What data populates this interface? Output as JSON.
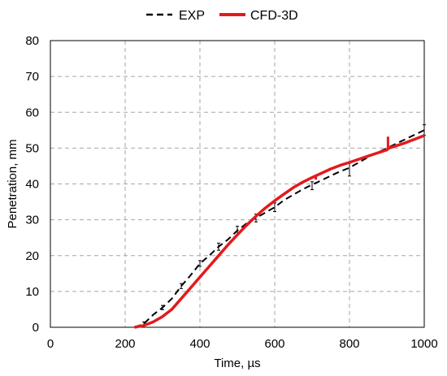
{
  "chart_data": {
    "type": "line",
    "xlabel": "Time, µs",
    "ylabel": "Penetration, mm",
    "xlim": [
      0,
      1000
    ],
    "ylim": [
      0,
      80
    ],
    "xticks": [
      0,
      200,
      400,
      600,
      800,
      1000
    ],
    "yticks": [
      0,
      10,
      20,
      30,
      40,
      50,
      60,
      70,
      80
    ],
    "grid": true,
    "legend_position": "top-center",
    "series": [
      {
        "name": "EXP",
        "color": "#000000",
        "style": "dashed",
        "error_bars": true,
        "x": [
          225,
          250,
          275,
          300,
          325,
          350,
          375,
          400,
          425,
          450,
          475,
          500,
          525,
          550,
          575,
          600,
          625,
          650,
          675,
          700,
          725,
          750,
          775,
          800,
          850,
          900,
          950,
          1000
        ],
        "y": [
          0,
          1,
          3.5,
          5.5,
          8,
          11.5,
          14.5,
          17.8,
          20,
          22.5,
          24.5,
          27,
          29,
          30.5,
          32,
          33.5,
          35.5,
          37,
          38.5,
          39.8,
          41,
          42.3,
          43.5,
          44.5,
          47.5,
          50,
          52.5,
          55
        ],
        "error_x": [
          250,
          300,
          350,
          400,
          450,
          500,
          550,
          600,
          700,
          800,
          1000
        ],
        "error_y": [
          1,
          5.5,
          11.5,
          17.8,
          22.5,
          27,
          30.5,
          33.5,
          39.5,
          44,
          55
        ],
        "error_size": [
          0.5,
          0.6,
          0.7,
          0.8,
          1,
          1.2,
          1.1,
          1.2,
          1.1,
          1.8,
          1.5
        ]
      },
      {
        "name": "CFD-3D",
        "color": "#e31a1c",
        "style": "solid",
        "x": [
          225,
          250,
          275,
          300,
          325,
          350,
          375,
          400,
          425,
          450,
          475,
          500,
          525,
          550,
          575,
          600,
          625,
          650,
          675,
          700,
          725,
          750,
          775,
          800,
          850,
          900,
          905,
          950,
          1000
        ],
        "y": [
          0,
          0.5,
          1.5,
          3,
          5,
          8,
          11,
          14,
          17,
          20,
          23,
          25.8,
          28.5,
          31,
          33.3,
          35.3,
          37.2,
          39,
          40.5,
          41.8,
          43,
          44.2,
          45.2,
          46,
          47.8,
          49.5,
          50,
          51.5,
          53.5
        ]
      }
    ],
    "spikes": [
      {
        "series": "CFD-3D",
        "x": 903,
        "y_from": 49.5,
        "y_to": 53.2
      },
      {
        "series": "CFD-3D",
        "x": 710,
        "y_from": 41.2,
        "y_to": 42.5
      }
    ]
  }
}
